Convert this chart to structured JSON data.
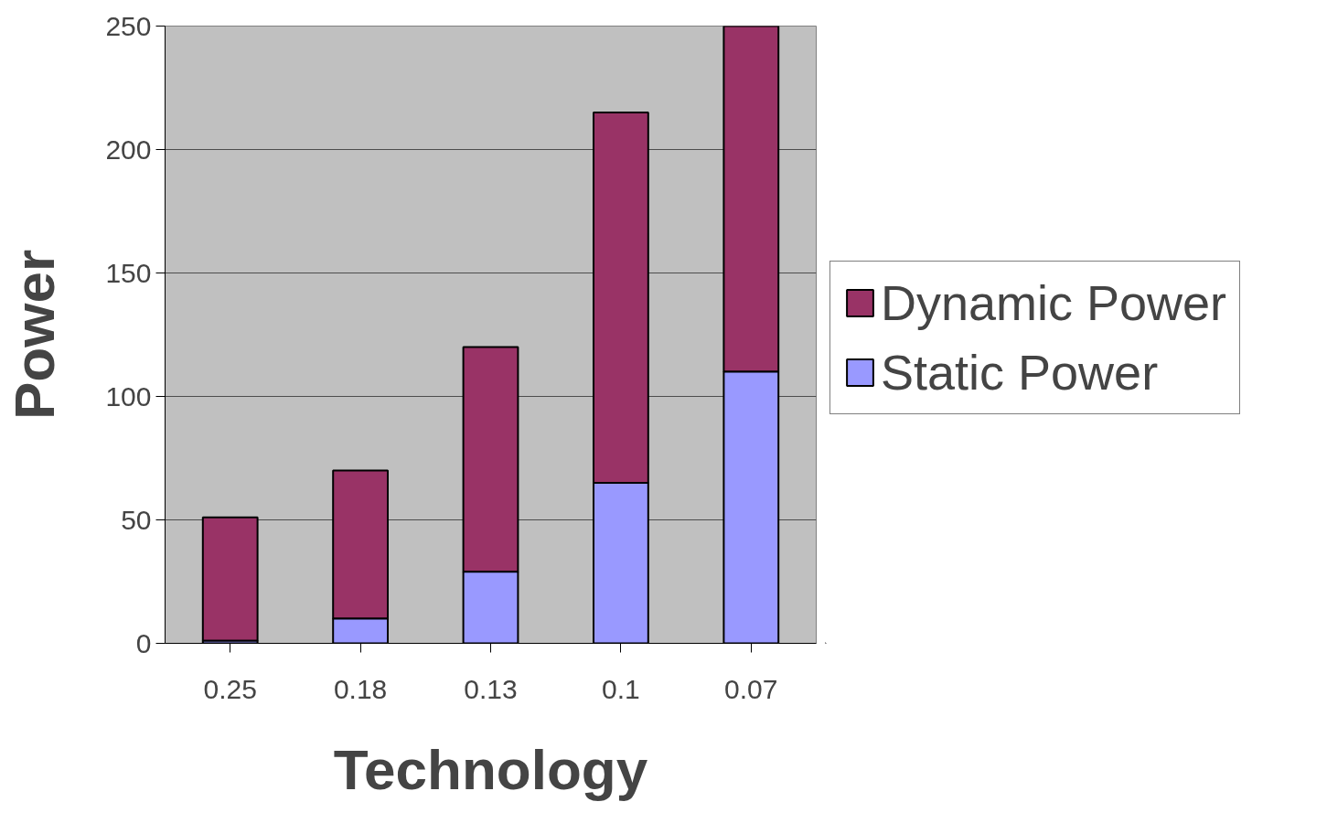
{
  "chart_data": {
    "type": "bar",
    "stacked": true,
    "xlabel": "Technology",
    "ylabel": "Power",
    "categories": [
      "0.25",
      "0.18",
      "0.13",
      "0.1",
      "0.07"
    ],
    "series": [
      {
        "name": "Static Power",
        "color": "#9999ff",
        "values": [
          1,
          10,
          29,
          65,
          110
        ]
      },
      {
        "name": "Dynamic Power",
        "color": "#993366",
        "values": [
          50,
          60,
          91,
          150,
          140
        ]
      }
    ],
    "ylim": [
      0,
      250
    ],
    "yticks": [
      0,
      50,
      100,
      150,
      200,
      250
    ],
    "grid": "y",
    "legend": "right"
  }
}
